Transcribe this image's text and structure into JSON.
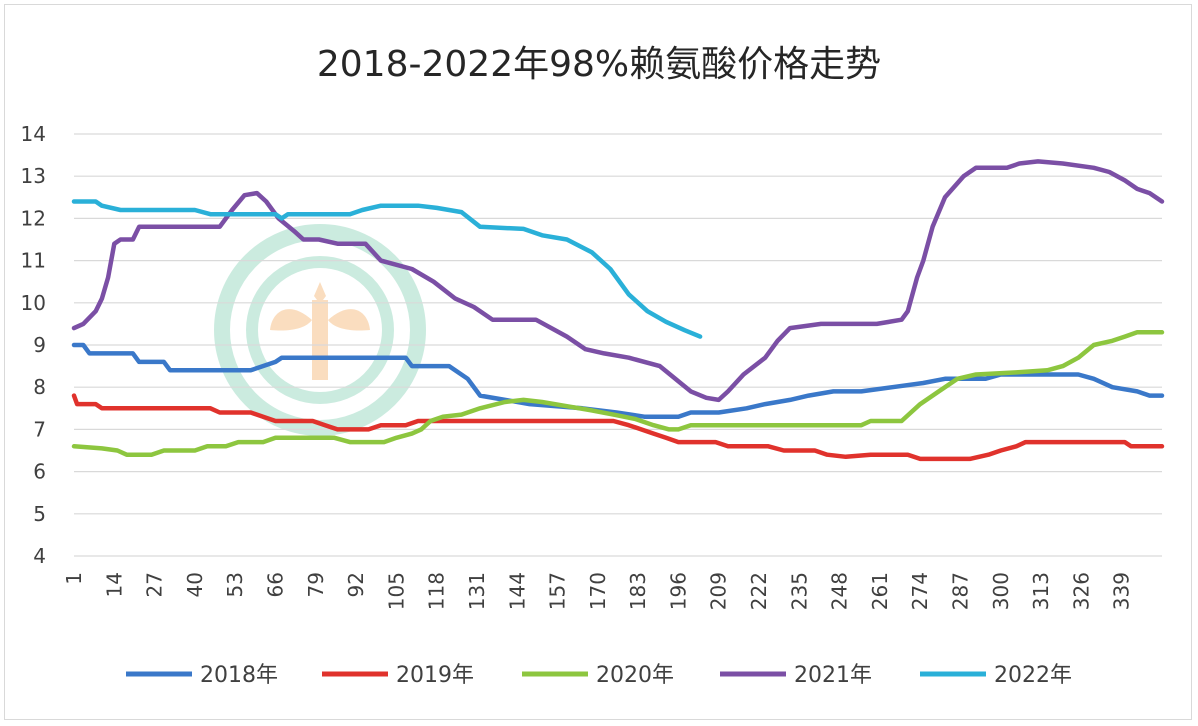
{
  "chart_data": {
    "type": "line",
    "title": "2018-2022年98%赖氨酸价格走势",
    "xlabel": "",
    "ylabel": "",
    "xlim": [
      1,
      352
    ],
    "ylim": [
      4,
      14
    ],
    "yticks": [
      4,
      5,
      6,
      7,
      8,
      9,
      10,
      11,
      12,
      13,
      14
    ],
    "xticks": [
      1,
      14,
      27,
      40,
      53,
      66,
      79,
      92,
      105,
      118,
      131,
      144,
      157,
      170,
      183,
      196,
      209,
      222,
      235,
      248,
      261,
      274,
      287,
      300,
      313,
      326,
      339
    ],
    "grid": "horizontal",
    "legend_position": "bottom",
    "series": [
      {
        "name": "2018年",
        "color": "#3a78c9",
        "points": [
          [
            1,
            9.0
          ],
          [
            4,
            9.0
          ],
          [
            6,
            8.8
          ],
          [
            20,
            8.8
          ],
          [
            22,
            8.6
          ],
          [
            30,
            8.6
          ],
          [
            32,
            8.4
          ],
          [
            58,
            8.4
          ],
          [
            66,
            8.6
          ],
          [
            68,
            8.7
          ],
          [
            108,
            8.7
          ],
          [
            110,
            8.5
          ],
          [
            122,
            8.5
          ],
          [
            128,
            8.2
          ],
          [
            132,
            7.8
          ],
          [
            148,
            7.6
          ],
          [
            165,
            7.5
          ],
          [
            176,
            7.4
          ],
          [
            185,
            7.3
          ],
          [
            196,
            7.3
          ],
          [
            200,
            7.4
          ],
          [
            209,
            7.4
          ],
          [
            218,
            7.5
          ],
          [
            224,
            7.6
          ],
          [
            232,
            7.7
          ],
          [
            238,
            7.8
          ],
          [
            246,
            7.9
          ],
          [
            255,
            7.9
          ],
          [
            265,
            8.0
          ],
          [
            275,
            8.1
          ],
          [
            282,
            8.2
          ],
          [
            295,
            8.2
          ],
          [
            300,
            8.3
          ],
          [
            325,
            8.3
          ],
          [
            330,
            8.2
          ],
          [
            336,
            8.0
          ],
          [
            344,
            7.9
          ],
          [
            348,
            7.8
          ],
          [
            352,
            7.8
          ]
        ]
      },
      {
        "name": "2019年",
        "color": "#e0322c",
        "points": [
          [
            1,
            7.8
          ],
          [
            2,
            7.6
          ],
          [
            8,
            7.6
          ],
          [
            10,
            7.5
          ],
          [
            45,
            7.5
          ],
          [
            48,
            7.4
          ],
          [
            58,
            7.4
          ],
          [
            62,
            7.3
          ],
          [
            66,
            7.2
          ],
          [
            78,
            7.2
          ],
          [
            82,
            7.1
          ],
          [
            86,
            7.0
          ],
          [
            96,
            7.0
          ],
          [
            100,
            7.1
          ],
          [
            108,
            7.1
          ],
          [
            112,
            7.2
          ],
          [
            175,
            7.2
          ],
          [
            180,
            7.1
          ],
          [
            184,
            7.0
          ],
          [
            188,
            6.9
          ],
          [
            192,
            6.8
          ],
          [
            196,
            6.7
          ],
          [
            208,
            6.7
          ],
          [
            212,
            6.6
          ],
          [
            225,
            6.6
          ],
          [
            230,
            6.5
          ],
          [
            240,
            6.5
          ],
          [
            244,
            6.4
          ],
          [
            250,
            6.35
          ],
          [
            258,
            6.4
          ],
          [
            270,
            6.4
          ],
          [
            274,
            6.3
          ],
          [
            290,
            6.3
          ],
          [
            296,
            6.4
          ],
          [
            300,
            6.5
          ],
          [
            305,
            6.6
          ],
          [
            308,
            6.7
          ],
          [
            340,
            6.7
          ],
          [
            342,
            6.6
          ],
          [
            352,
            6.6
          ]
        ]
      },
      {
        "name": "2020年",
        "color": "#8dc63f",
        "points": [
          [
            1,
            6.6
          ],
          [
            10,
            6.55
          ],
          [
            15,
            6.5
          ],
          [
            18,
            6.4
          ],
          [
            26,
            6.4
          ],
          [
            30,
            6.5
          ],
          [
            40,
            6.5
          ],
          [
            44,
            6.6
          ],
          [
            50,
            6.6
          ],
          [
            54,
            6.7
          ],
          [
            62,
            6.7
          ],
          [
            66,
            6.8
          ],
          [
            85,
            6.8
          ],
          [
            90,
            6.7
          ],
          [
            101,
            6.7
          ],
          [
            105,
            6.8
          ],
          [
            110,
            6.9
          ],
          [
            113,
            7.0
          ],
          [
            116,
            7.2
          ],
          [
            120,
            7.3
          ],
          [
            126,
            7.35
          ],
          [
            132,
            7.5
          ],
          [
            140,
            7.65
          ],
          [
            146,
            7.7
          ],
          [
            152,
            7.65
          ],
          [
            160,
            7.55
          ],
          [
            168,
            7.45
          ],
          [
            175,
            7.35
          ],
          [
            182,
            7.25
          ],
          [
            188,
            7.1
          ],
          [
            193,
            7.0
          ],
          [
            196,
            7.0
          ],
          [
            200,
            7.1
          ],
          [
            210,
            7.1
          ],
          [
            230,
            7.1
          ],
          [
            255,
            7.1
          ],
          [
            258,
            7.2
          ],
          [
            268,
            7.2
          ],
          [
            271,
            7.4
          ],
          [
            274,
            7.6
          ],
          [
            280,
            7.9
          ],
          [
            286,
            8.2
          ],
          [
            292,
            8.3
          ],
          [
            305,
            8.35
          ],
          [
            315,
            8.4
          ],
          [
            320,
            8.5
          ],
          [
            325,
            8.7
          ],
          [
            330,
            9.0
          ],
          [
            336,
            9.1
          ],
          [
            340,
            9.2
          ],
          [
            344,
            9.3
          ],
          [
            352,
            9.3
          ]
        ]
      },
      {
        "name": "2021年",
        "color": "#7b4fa5",
        "points": [
          [
            1,
            9.4
          ],
          [
            4,
            9.5
          ],
          [
            8,
            9.8
          ],
          [
            10,
            10.1
          ],
          [
            12,
            10.6
          ],
          [
            14,
            11.4
          ],
          [
            16,
            11.5
          ],
          [
            20,
            11.5
          ],
          [
            22,
            11.8
          ],
          [
            48,
            11.8
          ],
          [
            52,
            12.2
          ],
          [
            56,
            12.55
          ],
          [
            60,
            12.6
          ],
          [
            63,
            12.4
          ],
          [
            67,
            12.0
          ],
          [
            72,
            11.7
          ],
          [
            75,
            11.5
          ],
          [
            80,
            11.5
          ],
          [
            86,
            11.4
          ],
          [
            95,
            11.4
          ],
          [
            100,
            11.0
          ],
          [
            110,
            10.8
          ],
          [
            117,
            10.5
          ],
          [
            124,
            10.1
          ],
          [
            130,
            9.9
          ],
          [
            136,
            9.6
          ],
          [
            150,
            9.6
          ],
          [
            160,
            9.2
          ],
          [
            166,
            8.9
          ],
          [
            172,
            8.8
          ],
          [
            180,
            8.7
          ],
          [
            190,
            8.5
          ],
          [
            195,
            8.2
          ],
          [
            200,
            7.9
          ],
          [
            205,
            7.75
          ],
          [
            209,
            7.7
          ],
          [
            212,
            7.9
          ],
          [
            217,
            8.3
          ],
          [
            224,
            8.7
          ],
          [
            228,
            9.1
          ],
          [
            232,
            9.4
          ],
          [
            242,
            9.5
          ],
          [
            250,
            9.5
          ],
          [
            260,
            9.5
          ],
          [
            268,
            9.6
          ],
          [
            270,
            9.8
          ],
          [
            273,
            10.6
          ],
          [
            275,
            11.0
          ],
          [
            278,
            11.8
          ],
          [
            282,
            12.5
          ],
          [
            288,
            13.0
          ],
          [
            292,
            13.2
          ],
          [
            302,
            13.2
          ],
          [
            306,
            13.3
          ],
          [
            312,
            13.35
          ],
          [
            320,
            13.3
          ],
          [
            330,
            13.2
          ],
          [
            335,
            13.1
          ],
          [
            340,
            12.9
          ],
          [
            344,
            12.7
          ],
          [
            348,
            12.6
          ],
          [
            352,
            12.4
          ]
        ]
      },
      {
        "name": "2022年",
        "color": "#2ab0d8",
        "points": [
          [
            1,
            12.4
          ],
          [
            8,
            12.4
          ],
          [
            10,
            12.3
          ],
          [
            16,
            12.2
          ],
          [
            40,
            12.2
          ],
          [
            45,
            12.1
          ],
          [
            66,
            12.1
          ],
          [
            68,
            12.0
          ],
          [
            70,
            12.1
          ],
          [
            90,
            12.1
          ],
          [
            94,
            12.2
          ],
          [
            100,
            12.3
          ],
          [
            112,
            12.3
          ],
          [
            118,
            12.25
          ],
          [
            126,
            12.15
          ],
          [
            132,
            11.8
          ],
          [
            146,
            11.75
          ],
          [
            152,
            11.6
          ],
          [
            160,
            11.5
          ],
          [
            168,
            11.2
          ],
          [
            174,
            10.8
          ],
          [
            180,
            10.2
          ],
          [
            186,
            9.8
          ],
          [
            192,
            9.55
          ],
          [
            198,
            9.35
          ],
          [
            203,
            9.2
          ]
        ]
      }
    ]
  }
}
